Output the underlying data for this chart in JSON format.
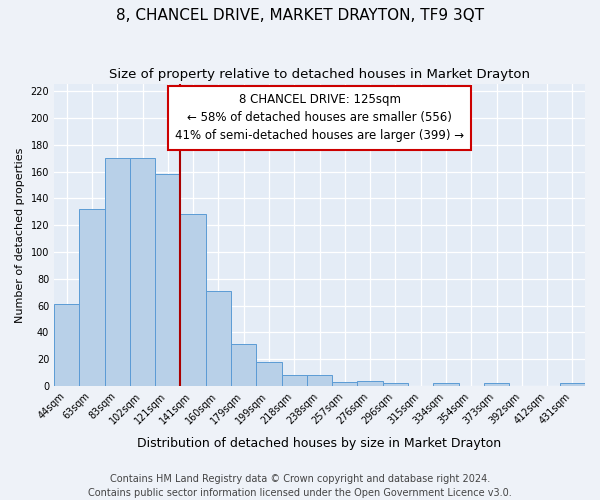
{
  "title": "8, CHANCEL DRIVE, MARKET DRAYTON, TF9 3QT",
  "subtitle": "Size of property relative to detached houses in Market Drayton",
  "xlabel": "Distribution of detached houses by size in Market Drayton",
  "ylabel": "Number of detached properties",
  "bin_labels": [
    "44sqm",
    "63sqm",
    "83sqm",
    "102sqm",
    "121sqm",
    "141sqm",
    "160sqm",
    "179sqm",
    "199sqm",
    "218sqm",
    "238sqm",
    "257sqm",
    "276sqm",
    "296sqm",
    "315sqm",
    "334sqm",
    "354sqm",
    "373sqm",
    "392sqm",
    "412sqm",
    "431sqm"
  ],
  "bar_values": [
    61,
    132,
    170,
    170,
    158,
    128,
    71,
    31,
    18,
    8,
    8,
    3,
    4,
    2,
    0,
    2,
    0,
    2,
    0,
    0,
    2
  ],
  "bar_color": "#b8d0e8",
  "bar_edge_color": "#5b9bd5",
  "ylim": [
    0,
    225
  ],
  "yticks": [
    0,
    20,
    40,
    60,
    80,
    100,
    120,
    140,
    160,
    180,
    200,
    220
  ],
  "reference_line_bin_index": 4,
  "reference_line_color": "#aa0000",
  "annotation_title": "8 CHANCEL DRIVE: 125sqm",
  "annotation_line1": "← 58% of detached houses are smaller (556)",
  "annotation_line2": "41% of semi-detached houses are larger (399) →",
  "annotation_box_edge": "#cc0000",
  "footer_line1": "Contains HM Land Registry data © Crown copyright and database right 2024.",
  "footer_line2": "Contains public sector information licensed under the Open Government Licence v3.0.",
  "background_color": "#eef2f8",
  "plot_bg_color": "#e4ecf6",
  "grid_color": "#ffffff",
  "title_fontsize": 11,
  "subtitle_fontsize": 9.5,
  "ylabel_fontsize": 8,
  "xlabel_fontsize": 9,
  "tick_fontsize": 7,
  "annotation_fontsize": 8.5,
  "footer_fontsize": 7
}
